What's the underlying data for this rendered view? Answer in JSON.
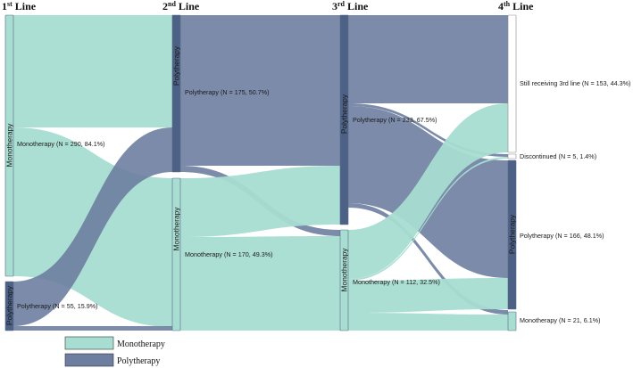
{
  "colors": {
    "monotherapy": "#a8ddd1",
    "polytherapy": "#6d7ea0",
    "mono_node": "#a8ddd1",
    "poly_node": "#4d6187",
    "still_node": "#ffffff",
    "node_border": "#5a6b87"
  },
  "headers": [
    {
      "num": "1",
      "sup": "st",
      "word": " Line"
    },
    {
      "num": "2",
      "sup": "nd",
      "word": " Line"
    },
    {
      "num": "3",
      "sup": "rd",
      "word": " Line"
    },
    {
      "num": "4",
      "sup": "th",
      "word": " Line"
    }
  ],
  "nodes": {
    "l1_mono": {
      "name": "Monotherapy",
      "label": "Monotherapy (N = 290, 84.1%)",
      "type": "mono"
    },
    "l1_poly": {
      "name": "Polytherapy",
      "label": "Polytherapy (N = 55, 15.9%)",
      "type": "poly"
    },
    "l2_poly": {
      "name": "Polytherapy",
      "label": "Polytherapy (N = 175, 50.7%)",
      "type": "poly"
    },
    "l2_mono": {
      "name": "Monotherapy",
      "label": "Monotherapy (N = 170, 49.3%)",
      "type": "mono"
    },
    "l3_poly": {
      "name": "Polytherapy",
      "label": "Polytherapy (N = 233, 67.5%)",
      "type": "poly"
    },
    "l3_mono": {
      "name": "Monotherapy",
      "label": "Monotherapy (N = 112, 32.5%)",
      "type": "mono"
    },
    "l4_still": {
      "name": "",
      "label": "Still receiving 3rd line (N = 153, 44.3%)",
      "type": "still"
    },
    "l4_disc": {
      "name": "",
      "label": "Discontinued (N = 5, 1.4%)",
      "type": "still"
    },
    "l4_poly": {
      "name": "Polytherapy",
      "label": "Polytherapy (N = 166, 48.1%)",
      "type": "poly"
    },
    "l4_mono": {
      "name": "",
      "label": "Monotherapy (N = 21, 6.1%)",
      "type": "mono"
    }
  },
  "legend": [
    {
      "label": "Monotherapy",
      "color_key": "monotherapy"
    },
    {
      "label": "Polytherapy",
      "color_key": "polytherapy"
    }
  ]
}
